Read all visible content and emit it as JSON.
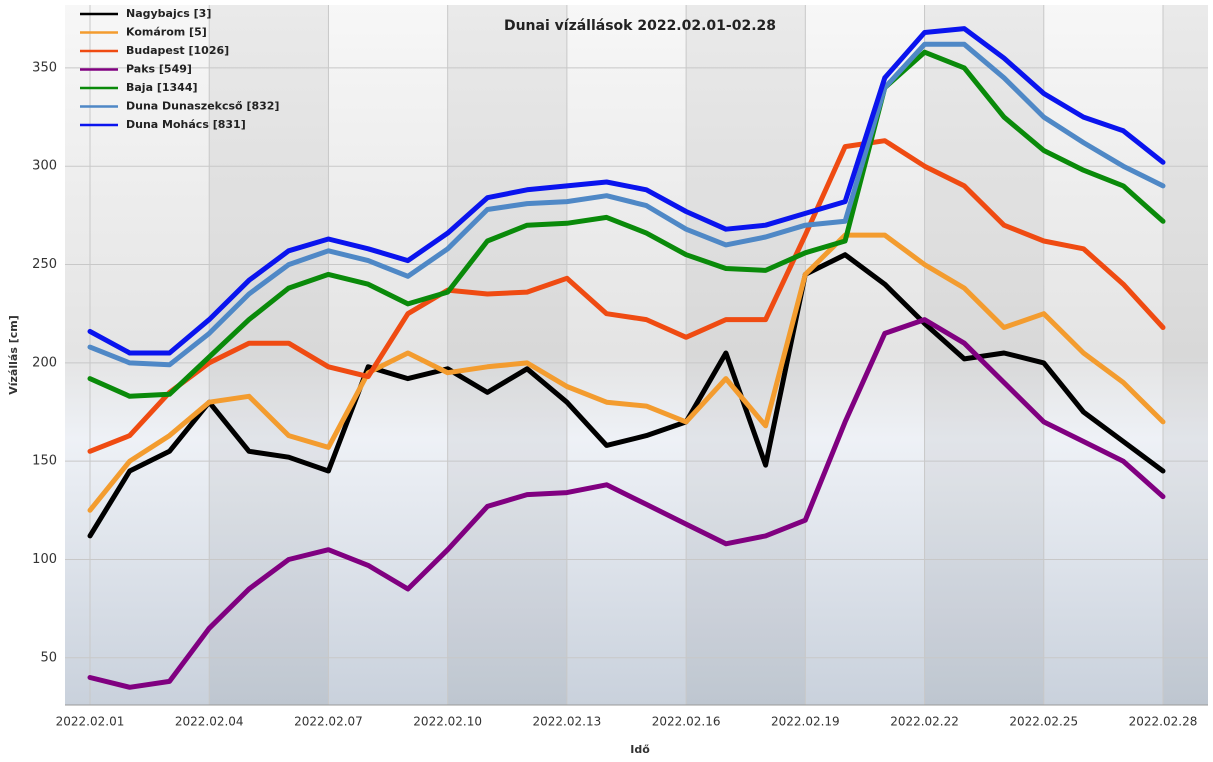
{
  "chart_data": {
    "type": "line",
    "title": "Dunai vízállások 2022.02.01-02.28",
    "x_label": "Idő",
    "y_label": "Vízállás [cm]",
    "x": [
      "2022.02.01",
      "2022.02.02",
      "2022.02.03",
      "2022.02.04",
      "2022.02.05",
      "2022.02.06",
      "2022.02.07",
      "2022.02.08",
      "2022.02.09",
      "2022.02.10",
      "2022.02.11",
      "2022.02.12",
      "2022.02.13",
      "2022.02.14",
      "2022.02.15",
      "2022.02.16",
      "2022.02.17",
      "2022.02.18",
      "2022.02.19",
      "2022.02.20",
      "2022.02.21",
      "2022.02.22",
      "2022.02.23",
      "2022.02.24",
      "2022.02.25",
      "2022.02.26",
      "2022.02.27",
      "2022.02.28"
    ],
    "xticks": [
      "2022.02.01",
      "2022.02.04",
      "2022.02.07",
      "2022.02.10",
      "2022.02.13",
      "2022.02.16",
      "2022.02.19",
      "2022.02.22",
      "2022.02.25",
      "2022.02.28"
    ],
    "ylim": [
      26,
      382
    ],
    "yticks": [
      50,
      100,
      150,
      200,
      250,
      300,
      350
    ],
    "grid": true,
    "legend": "upper left",
    "series": [
      {
        "name": "Nagybajcs [3]",
        "color": "#000000",
        "values": [
          112,
          145,
          155,
          180,
          155,
          152,
          145,
          198,
          192,
          197,
          185,
          197,
          180,
          158,
          163,
          170,
          205,
          148,
          245,
          255,
          240,
          220,
          202,
          205,
          200,
          175,
          160,
          145
        ]
      },
      {
        "name": "Komárom [5]",
        "color": "#f39c2f",
        "values": [
          125,
          150,
          163,
          180,
          183,
          163,
          157,
          195,
          205,
          195,
          198,
          200,
          188,
          180,
          178,
          170,
          192,
          168,
          245,
          265,
          265,
          250,
          238,
          218,
          225,
          205,
          190,
          170
        ]
      },
      {
        "name": "Budapest [1026]",
        "color": "#ef4b12",
        "values": [
          155,
          163,
          185,
          200,
          210,
          210,
          198,
          193,
          225,
          237,
          235,
          236,
          243,
          225,
          222,
          213,
          222,
          222,
          265,
          310,
          313,
          300,
          290,
          270,
          262,
          258,
          240,
          218
        ]
      },
      {
        "name": "Paks [549]",
        "color": "#800080",
        "values": [
          40,
          35,
          38,
          65,
          85,
          100,
          105,
          97,
          85,
          105,
          127,
          133,
          134,
          138,
          128,
          118,
          108,
          112,
          120,
          170,
          215,
          222,
          210,
          190,
          170,
          160,
          150,
          132
        ]
      },
      {
        "name": "Baja [1344]",
        "color": "#0a8a0a",
        "values": [
          192,
          183,
          184,
          203,
          222,
          238,
          245,
          240,
          230,
          236,
          262,
          270,
          271,
          274,
          266,
          255,
          248,
          247,
          256,
          262,
          340,
          358,
          350,
          325,
          308,
          298,
          290,
          272
        ]
      },
      {
        "name": "Duna Dunaszekcső [832]",
        "color": "#4f88c6",
        "values": [
          208,
          200,
          199,
          215,
          235,
          250,
          257,
          252,
          244,
          258,
          278,
          281,
          282,
          285,
          280,
          268,
          260,
          264,
          270,
          272,
          340,
          362,
          362,
          345,
          325,
          312,
          300,
          290
        ]
      },
      {
        "name": "Duna Mohács [831]",
        "color": "#0a14ee",
        "values": [
          216,
          205,
          205,
          222,
          242,
          257,
          263,
          258,
          252,
          266,
          284,
          288,
          290,
          292,
          288,
          277,
          268,
          270,
          276,
          282,
          345,
          368,
          370,
          355,
          337,
          325,
          318,
          302
        ]
      }
    ]
  }
}
